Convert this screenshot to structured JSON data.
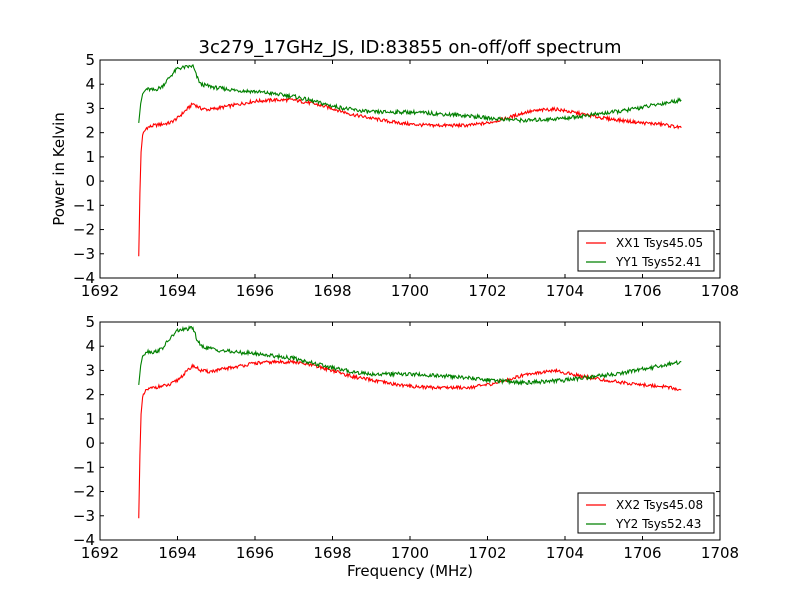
{
  "chart_data": [
    {
      "type": "line",
      "title": "3c279_17GHz_JS, ID:83855 on-off/off spectrum",
      "xlabel": "",
      "ylabel": "Power in Kelvin",
      "xlim": [
        1692,
        1708
      ],
      "ylim": [
        -4,
        5
      ],
      "xticks": [
        1692,
        1694,
        1696,
        1698,
        1700,
        1702,
        1704,
        1706,
        1708
      ],
      "yticks": [
        -4,
        -3,
        -2,
        -1,
        0,
        1,
        2,
        3,
        4,
        5
      ],
      "grid": false,
      "legend_position": "lower-right",
      "series": [
        {
          "name": "XX1 Tsys45.05",
          "color": "#ff0000",
          "x": [
            1693.0,
            1693.03,
            1693.06,
            1693.1,
            1693.2,
            1693.4,
            1693.6,
            1693.8,
            1694.0,
            1694.2,
            1694.4,
            1694.6,
            1694.8,
            1695.0,
            1695.5,
            1696.0,
            1696.5,
            1697.0,
            1697.5,
            1698.0,
            1698.5,
            1699.0,
            1699.5,
            1700.0,
            1700.5,
            1701.0,
            1701.5,
            1702.0,
            1702.5,
            1703.0,
            1703.5,
            1703.8,
            1704.0,
            1704.5,
            1705.0,
            1705.5,
            1706.0,
            1706.5,
            1707.0
          ],
          "y": [
            -3.1,
            -0.5,
            1.2,
            1.9,
            2.2,
            2.3,
            2.35,
            2.4,
            2.6,
            2.9,
            3.2,
            3.0,
            2.95,
            3.0,
            3.15,
            3.3,
            3.35,
            3.35,
            3.2,
            3.0,
            2.75,
            2.6,
            2.45,
            2.35,
            2.3,
            2.3,
            2.3,
            2.4,
            2.6,
            2.85,
            2.95,
            2.97,
            2.9,
            2.75,
            2.6,
            2.5,
            2.4,
            2.35,
            2.2
          ]
        },
        {
          "name": "YY1 Tsys52.41",
          "color": "#008000",
          "x": [
            1693.0,
            1693.05,
            1693.1,
            1693.2,
            1693.4,
            1693.6,
            1693.8,
            1694.0,
            1694.2,
            1694.4,
            1694.5,
            1694.6,
            1695.0,
            1695.5,
            1696.0,
            1696.5,
            1697.0,
            1697.5,
            1698.0,
            1698.5,
            1699.0,
            1699.5,
            1700.0,
            1700.5,
            1701.0,
            1701.5,
            1702.0,
            1702.5,
            1703.0,
            1703.5,
            1704.0,
            1704.5,
            1705.0,
            1705.5,
            1706.0,
            1706.5,
            1707.0
          ],
          "y": [
            2.4,
            3.2,
            3.6,
            3.8,
            3.75,
            3.9,
            4.3,
            4.65,
            4.7,
            4.75,
            4.3,
            4.0,
            3.85,
            3.75,
            3.7,
            3.6,
            3.5,
            3.3,
            3.1,
            2.95,
            2.85,
            2.85,
            2.85,
            2.8,
            2.75,
            2.7,
            2.6,
            2.55,
            2.5,
            2.55,
            2.6,
            2.7,
            2.8,
            2.9,
            3.05,
            3.2,
            3.35
          ]
        }
      ]
    },
    {
      "type": "line",
      "title": "",
      "xlabel": "Frequency (MHz)",
      "ylabel": "",
      "xlim": [
        1692,
        1708
      ],
      "ylim": [
        -4,
        5
      ],
      "xticks": [
        1692,
        1694,
        1696,
        1698,
        1700,
        1702,
        1704,
        1706,
        1708
      ],
      "yticks": [
        -4,
        -3,
        -2,
        -1,
        0,
        1,
        2,
        3,
        4,
        5
      ],
      "grid": false,
      "legend_position": "lower-right",
      "series": [
        {
          "name": "XX2 Tsys45.08",
          "color": "#ff0000",
          "x": [
            1693.0,
            1693.03,
            1693.06,
            1693.1,
            1693.2,
            1693.4,
            1693.6,
            1693.8,
            1694.0,
            1694.2,
            1694.4,
            1694.6,
            1694.8,
            1695.0,
            1695.5,
            1696.0,
            1696.5,
            1697.0,
            1697.5,
            1698.0,
            1698.5,
            1699.0,
            1699.5,
            1700.0,
            1700.5,
            1701.0,
            1701.5,
            1702.0,
            1702.5,
            1703.0,
            1703.5,
            1703.8,
            1704.0,
            1704.5,
            1705.0,
            1705.5,
            1706.0,
            1706.5,
            1707.0
          ],
          "y": [
            -3.1,
            -0.5,
            1.2,
            1.9,
            2.2,
            2.3,
            2.35,
            2.4,
            2.6,
            2.9,
            3.2,
            3.0,
            2.95,
            3.0,
            3.15,
            3.3,
            3.35,
            3.35,
            3.2,
            3.0,
            2.75,
            2.6,
            2.45,
            2.35,
            2.3,
            2.3,
            2.3,
            2.4,
            2.6,
            2.85,
            2.95,
            2.97,
            2.9,
            2.75,
            2.6,
            2.5,
            2.4,
            2.35,
            2.2
          ]
        },
        {
          "name": "YY2 Tsys52.43",
          "color": "#008000",
          "x": [
            1693.0,
            1693.05,
            1693.1,
            1693.2,
            1693.4,
            1693.6,
            1693.8,
            1694.0,
            1694.2,
            1694.4,
            1694.5,
            1694.6,
            1695.0,
            1695.5,
            1696.0,
            1696.5,
            1697.0,
            1697.5,
            1698.0,
            1698.5,
            1699.0,
            1699.5,
            1700.0,
            1700.5,
            1701.0,
            1701.5,
            1702.0,
            1702.5,
            1703.0,
            1703.5,
            1704.0,
            1704.5,
            1705.0,
            1705.5,
            1706.0,
            1706.5,
            1707.0
          ],
          "y": [
            2.4,
            3.2,
            3.6,
            3.8,
            3.75,
            3.9,
            4.3,
            4.65,
            4.7,
            4.75,
            4.3,
            4.0,
            3.85,
            3.75,
            3.7,
            3.6,
            3.5,
            3.3,
            3.1,
            2.95,
            2.85,
            2.85,
            2.85,
            2.8,
            2.75,
            2.7,
            2.6,
            2.55,
            2.5,
            2.55,
            2.6,
            2.7,
            2.8,
            2.9,
            3.05,
            3.2,
            3.35
          ]
        }
      ]
    }
  ]
}
